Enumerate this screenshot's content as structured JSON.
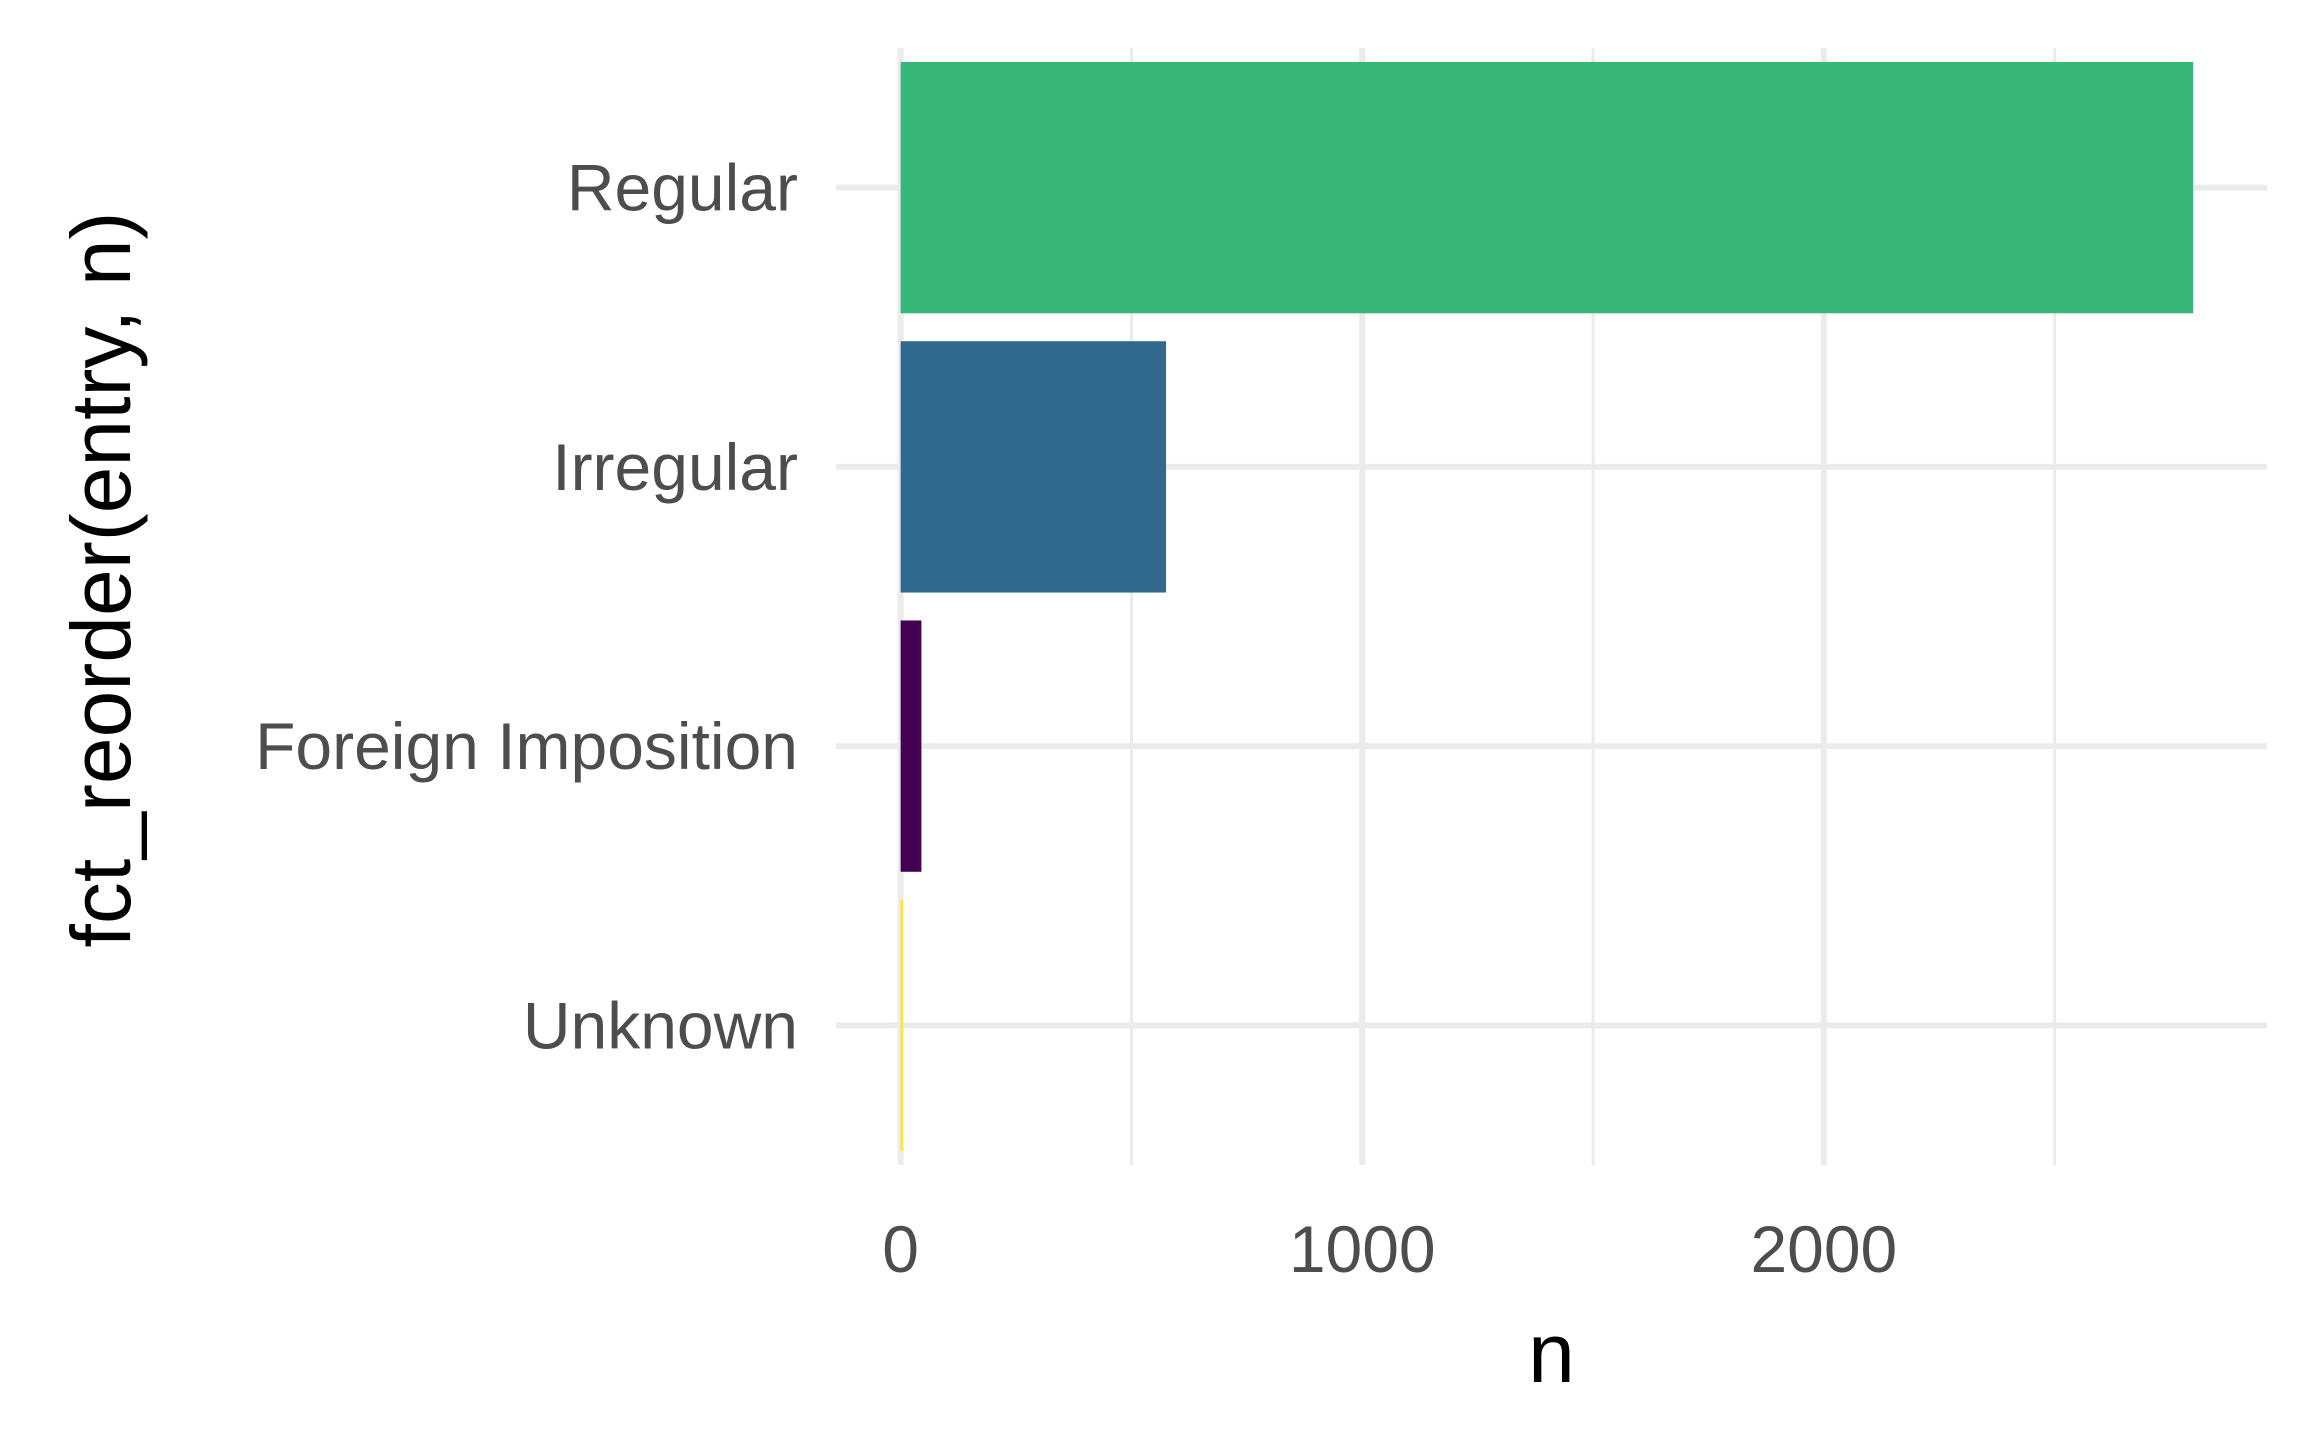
{
  "chart_data": {
    "type": "bar",
    "orientation": "horizontal",
    "categories": [
      "Regular",
      "Irregular",
      "Foreign Imposition",
      "Unknown"
    ],
    "values": [
      2800,
      575,
      45,
      5
    ],
    "colors": [
      "#37b87a",
      "#31688e",
      "#440154",
      "#fde725"
    ],
    "xlabel": "n",
    "ylabel": "fct_reorder(entry, n)",
    "xlim": [
      -140,
      2960
    ],
    "xticks": [
      0,
      1000,
      2000
    ],
    "xticks_minor": [
      500,
      1500,
      2500
    ],
    "x_tick_labels": [
      "0",
      "1000",
      "2000"
    ],
    "grid": true,
    "legend": "none",
    "theme": "minimal"
  }
}
